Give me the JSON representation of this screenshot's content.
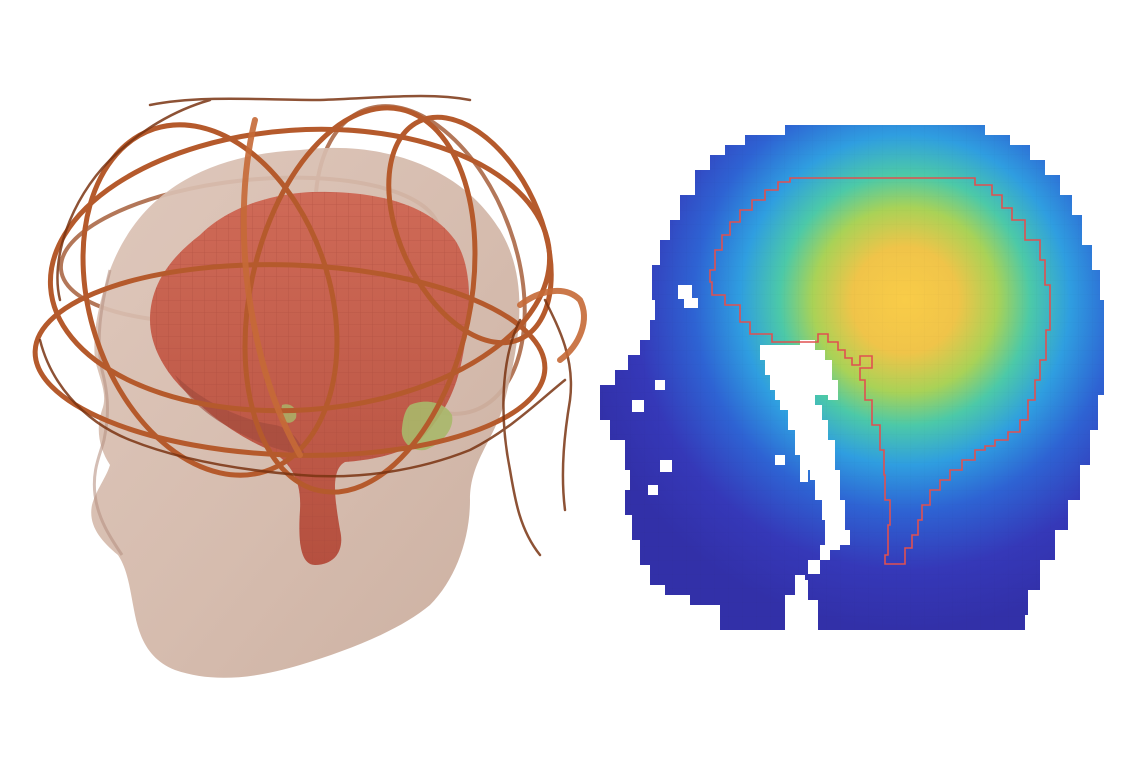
{
  "figure": {
    "panels": [
      {
        "id": "left",
        "content": "3d-head-coil-render"
      },
      {
        "id": "right",
        "content": "sagittal-field-heatmap"
      }
    ],
    "colors": {
      "background": "#ffffff",
      "head_skin": "#c9a99a",
      "brain": "#c4604f",
      "brain_shadow": "#9e4a3c",
      "cerebellum_green": "#a9b86a",
      "coil": "#b55a2c",
      "coil_dark": "#7a3412",
      "heatmap_low": "#3c3ab8",
      "heatmap_mid_blue": "#2f8fe0",
      "heatmap_cyan": "#35c4c0",
      "heatmap_green": "#8fcf5a",
      "heatmap_high": "#f7c84a",
      "brain_outline": "#e05050",
      "airway": "#ffffff"
    },
    "icons": [
      "coil-wire",
      "brain-mesh",
      "head-mesh",
      "field-heatmap"
    ]
  }
}
